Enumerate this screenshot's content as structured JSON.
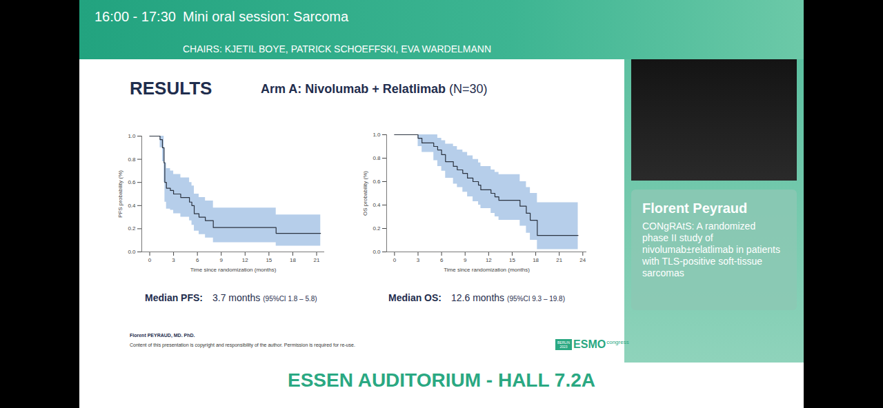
{
  "header": {
    "time": "16:00 - 17:30",
    "session": "Mini oral session: Sarcoma",
    "chairs": "CHAIRS: KJETIL BOYE, PATRICK SCHOEFFSKI, EVA WARDELMANN"
  },
  "slide": {
    "title": "RESULTS",
    "subtitle_bold": "Arm A: Nivolumab + Relatlimab",
    "subtitle_rest": "(N=30)",
    "author": "Florent PEYRAUD, MD. PhD.",
    "copyright": "Content of this presentation is copyright and responsibility of the author. Permission is required for re-use.",
    "logo": {
      "city": "BERLIN",
      "year": "2023",
      "name": "ESMO",
      "suffix": "congress"
    }
  },
  "speaker": {
    "name": "Florent Peyraud",
    "talk": "CONgRAtS: A randomized phase II study of nivolumab±relatlimab in patients with TLS-positive soft-tissue sarcomas"
  },
  "footer": "ESSEN AUDITORIUM - HALL 7.2A",
  "chart_data": [
    {
      "type": "line",
      "line_style": "step",
      "color": "#2b3340",
      "x_label": "Time since randomization (months)",
      "y_label": "PFS probability (%)",
      "x": [
        0,
        1.3,
        1.6,
        1.8,
        1.9,
        2.1,
        2.6,
        3.0,
        3.9,
        5.0,
        5.3,
        5.6,
        6.2,
        7.0,
        8.0,
        15.9,
        21.5
      ],
      "values": [
        1.0,
        0.97,
        0.9,
        0.77,
        0.6,
        0.55,
        0.53,
        0.5,
        0.47,
        0.43,
        0.4,
        0.33,
        0.3,
        0.27,
        0.21,
        0.16,
        0.16
      ],
      "ci_lower": [
        1.0,
        0.9,
        0.78,
        0.6,
        0.43,
        0.37,
        0.36,
        0.33,
        0.3,
        0.27,
        0.23,
        0.18,
        0.15,
        0.12,
        0.08,
        0.05,
        0.05
      ],
      "ci_upper": [
        1.0,
        1.0,
        1.0,
        0.9,
        0.77,
        0.72,
        0.7,
        0.67,
        0.64,
        0.6,
        0.57,
        0.5,
        0.47,
        0.44,
        0.38,
        0.32,
        0.32
      ],
      "xlim": [
        -1,
        22
      ],
      "xticks": [
        0,
        3,
        6,
        9,
        12,
        15,
        18,
        21
      ],
      "ylim": [
        0,
        1
      ],
      "yticks": [
        {
          "value": 0,
          "label": "0.0"
        },
        {
          "value": 0.2,
          "label": "0.2"
        },
        {
          "value": 0.4,
          "label": "0.4"
        },
        {
          "value": 0.6,
          "label": "0.6"
        },
        {
          "value": 0.8,
          "label": "0.8"
        },
        {
          "value": 1,
          "label": "1.0"
        }
      ],
      "grid": false,
      "annotations": [
        "Median PFS:",
        "3.7 months",
        "(95%CI 1.8 – 5.8)"
      ]
    },
    {
      "type": "line",
      "line_style": "step",
      "color": "#2b3340",
      "x_label": "Time since randomization (months)",
      "y_label": "OS probability (%)",
      "x": [
        0,
        3.0,
        3.5,
        5.0,
        5.5,
        6.0,
        6.5,
        7.5,
        8.0,
        8.7,
        9.3,
        10.0,
        10.7,
        11.0,
        12.3,
        12.8,
        13.3,
        16.0,
        16.8,
        17.3,
        18.2,
        23.4
      ],
      "values": [
        1.0,
        0.97,
        0.93,
        0.9,
        0.87,
        0.83,
        0.77,
        0.73,
        0.7,
        0.67,
        0.63,
        0.6,
        0.57,
        0.53,
        0.5,
        0.47,
        0.44,
        0.39,
        0.33,
        0.27,
        0.14,
        0.14
      ],
      "ci_lower": [
        1.0,
        0.9,
        0.85,
        0.78,
        0.73,
        0.69,
        0.63,
        0.58,
        0.55,
        0.51,
        0.47,
        0.43,
        0.4,
        0.37,
        0.33,
        0.3,
        0.27,
        0.22,
        0.16,
        0.1,
        0.02,
        0.02
      ],
      "ci_upper": [
        1.0,
        1.0,
        1.0,
        1.0,
        0.97,
        0.95,
        0.92,
        0.9,
        0.87,
        0.85,
        0.82,
        0.79,
        0.76,
        0.73,
        0.7,
        0.68,
        0.66,
        0.6,
        0.55,
        0.5,
        0.42,
        0.42
      ],
      "xlim": [
        -1,
        24.5
      ],
      "xticks": [
        0,
        3,
        6,
        9,
        12,
        15,
        18,
        21,
        24
      ],
      "ylim": [
        0,
        1
      ],
      "yticks": [
        {
          "value": 0,
          "label": "0.0"
        },
        {
          "value": 0.2,
          "label": "0.2"
        },
        {
          "value": 0.4,
          "label": "0.4"
        },
        {
          "value": 0.6,
          "label": "0.6"
        },
        {
          "value": 0.8,
          "label": "0.8"
        },
        {
          "value": 1,
          "label": "1.0"
        }
      ],
      "grid": false,
      "annotations": [
        "Median OS:",
        "12.6 months",
        "(95%CI 9.3 – 19.8)"
      ]
    }
  ]
}
